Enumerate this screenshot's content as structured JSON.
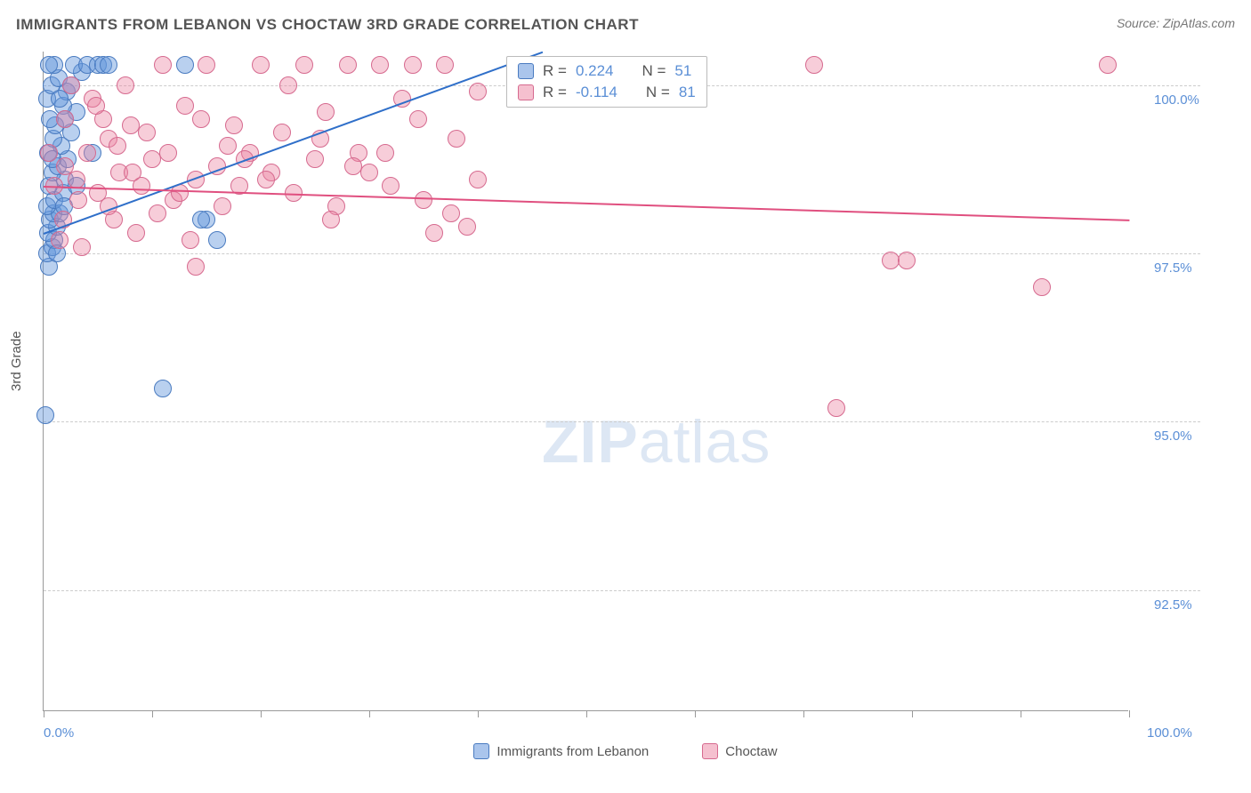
{
  "title": "IMMIGRANTS FROM LEBANON VS CHOCTAW 3RD GRADE CORRELATION CHART",
  "source": "Source: ZipAtlas.com",
  "yaxis_title": "3rd Grade",
  "watermark_bold": "ZIP",
  "watermark_light": "atlas",
  "chart": {
    "type": "scatter",
    "background_color": "#ffffff",
    "grid_color": "#cccccc",
    "axis_color": "#999999",
    "label_color": "#5b8fd6",
    "marker_radius": 10,
    "marker_opacity": 0.5,
    "xlim": [
      0,
      100
    ],
    "ylim": [
      90.7,
      100.5
    ],
    "ytick_positions": [
      92.5,
      95.0,
      97.5,
      100.0
    ],
    "ytick_labels": [
      "92.5%",
      "95.0%",
      "97.5%",
      "100.0%"
    ],
    "xtick_positions": [
      0,
      10,
      20,
      30,
      40,
      50,
      60,
      70,
      80,
      90,
      100
    ],
    "xaxis_label_left": "0.0%",
    "xaxis_label_right": "100.0%"
  },
  "series": [
    {
      "name": "Immigrants from Lebanon",
      "color_fill": "rgba(100,150,220,0.45)",
      "color_stroke": "#4a7bc0",
      "swatch_fill": "rgba(100,150,220,0.55)",
      "R": "0.224",
      "N": "51",
      "trend": {
        "x1": 0,
        "y1": 97.8,
        "x2": 46,
        "y2": 100.5,
        "color": "#2f6fc9"
      },
      "points": [
        [
          0.2,
          95.1
        ],
        [
          0.5,
          97.3
        ],
        [
          0.3,
          97.5
        ],
        [
          0.8,
          97.6
        ],
        [
          1.0,
          97.7
        ],
        [
          0.4,
          97.8
        ],
        [
          1.2,
          97.9
        ],
        [
          0.6,
          98.0
        ],
        [
          0.9,
          98.1
        ],
        [
          1.5,
          98.1
        ],
        [
          0.3,
          98.2
        ],
        [
          1.0,
          98.3
        ],
        [
          1.8,
          98.4
        ],
        [
          0.5,
          98.5
        ],
        [
          2.0,
          98.6
        ],
        [
          0.8,
          98.7
        ],
        [
          1.3,
          98.8
        ],
        [
          2.2,
          98.9
        ],
        [
          0.4,
          99.0
        ],
        [
          1.6,
          99.1
        ],
        [
          0.9,
          99.2
        ],
        [
          2.5,
          99.3
        ],
        [
          1.1,
          99.4
        ],
        [
          0.6,
          99.5
        ],
        [
          3.0,
          99.6
        ],
        [
          1.8,
          99.7
        ],
        [
          0.3,
          99.8
        ],
        [
          2.1,
          99.9
        ],
        [
          0.7,
          100.0
        ],
        [
          1.4,
          100.1
        ],
        [
          3.5,
          100.2
        ],
        [
          1.0,
          100.3
        ],
        [
          2.8,
          100.3
        ],
        [
          4.0,
          100.3
        ],
        [
          5.0,
          100.3
        ],
        [
          5.5,
          100.3
        ],
        [
          6.0,
          100.3
        ],
        [
          0.5,
          100.3
        ],
        [
          2.0,
          99.5
        ],
        [
          3.0,
          98.5
        ],
        [
          4.5,
          99.0
        ],
        [
          11.0,
          95.5
        ],
        [
          13.0,
          100.3
        ],
        [
          15.0,
          98.0
        ],
        [
          16.0,
          97.7
        ],
        [
          1.2,
          97.5
        ],
        [
          0.8,
          98.9
        ],
        [
          1.5,
          99.8
        ],
        [
          14.5,
          98.0
        ],
        [
          2.5,
          100.0
        ],
        [
          1.9,
          98.2
        ]
      ]
    },
    {
      "name": "Choctaw",
      "color_fill": "rgba(235,130,160,0.4)",
      "color_stroke": "#d66a8f",
      "swatch_fill": "rgba(235,130,160,0.5)",
      "R": "-0.114",
      "N": "81",
      "trend": {
        "x1": 0,
        "y1": 98.5,
        "x2": 100,
        "y2": 98.0,
        "color": "#e04f7f"
      },
      "points": [
        [
          1.0,
          98.5
        ],
        [
          2.0,
          98.8
        ],
        [
          3.0,
          98.6
        ],
        [
          4.0,
          99.0
        ],
        [
          5.0,
          98.4
        ],
        [
          6.0,
          99.2
        ],
        [
          7.0,
          98.7
        ],
        [
          8.0,
          99.4
        ],
        [
          9.0,
          98.5
        ],
        [
          10.0,
          98.9
        ],
        [
          11.0,
          100.3
        ],
        [
          12.0,
          98.3
        ],
        [
          13.0,
          99.7
        ],
        [
          14.0,
          98.6
        ],
        [
          15.0,
          100.3
        ],
        [
          16.0,
          98.8
        ],
        [
          17.0,
          99.1
        ],
        [
          18.0,
          98.5
        ],
        [
          19.0,
          99.0
        ],
        [
          20.0,
          100.3
        ],
        [
          21.0,
          98.7
        ],
        [
          22.0,
          99.3
        ],
        [
          23.0,
          98.4
        ],
        [
          24.0,
          100.3
        ],
        [
          25.0,
          98.9
        ],
        [
          26.0,
          99.6
        ],
        [
          27.0,
          98.2
        ],
        [
          28.0,
          100.3
        ],
        [
          29.0,
          99.0
        ],
        [
          30.0,
          98.7
        ],
        [
          31.0,
          100.3
        ],
        [
          32.0,
          98.5
        ],
        [
          33.0,
          99.8
        ],
        [
          34.0,
          100.3
        ],
        [
          35.0,
          98.3
        ],
        [
          36.0,
          97.8
        ],
        [
          37.0,
          100.3
        ],
        [
          38.0,
          99.2
        ],
        [
          39.0,
          97.9
        ],
        [
          40.0,
          98.6
        ],
        [
          1.5,
          97.7
        ],
        [
          3.5,
          97.6
        ],
        [
          5.5,
          99.5
        ],
        [
          7.5,
          100.0
        ],
        [
          9.5,
          99.3
        ],
        [
          2.5,
          100.0
        ],
        [
          4.5,
          99.8
        ],
        [
          6.5,
          98.0
        ],
        [
          8.5,
          97.8
        ],
        [
          10.5,
          98.1
        ],
        [
          12.5,
          98.4
        ],
        [
          14.5,
          99.5
        ],
        [
          16.5,
          98.2
        ],
        [
          18.5,
          98.9
        ],
        [
          20.5,
          98.6
        ],
        [
          22.5,
          100.0
        ],
        [
          25.5,
          99.2
        ],
        [
          28.5,
          98.8
        ],
        [
          31.5,
          99.0
        ],
        [
          34.5,
          99.5
        ],
        [
          37.5,
          98.1
        ],
        [
          40.0,
          99.9
        ],
        [
          2.0,
          99.5
        ],
        [
          6.0,
          98.2
        ],
        [
          14.0,
          97.3
        ],
        [
          71.0,
          100.3
        ],
        [
          73.0,
          95.2
        ],
        [
          78.0,
          97.4
        ],
        [
          79.5,
          97.4
        ],
        [
          92.0,
          97.0
        ],
        [
          98.0,
          100.3
        ],
        [
          0.5,
          99.0
        ],
        [
          1.8,
          98.0
        ],
        [
          3.2,
          98.3
        ],
        [
          4.8,
          99.7
        ],
        [
          6.8,
          99.1
        ],
        [
          8.2,
          98.7
        ],
        [
          11.5,
          99.0
        ],
        [
          13.5,
          97.7
        ],
        [
          17.5,
          99.4
        ],
        [
          26.5,
          98.0
        ]
      ]
    }
  ],
  "stats_labels": {
    "R": "R =",
    "N": "N ="
  },
  "legend": {
    "items": [
      {
        "label": "Immigrants from Lebanon",
        "series": 0
      },
      {
        "label": "Choctaw",
        "series": 1
      }
    ]
  }
}
